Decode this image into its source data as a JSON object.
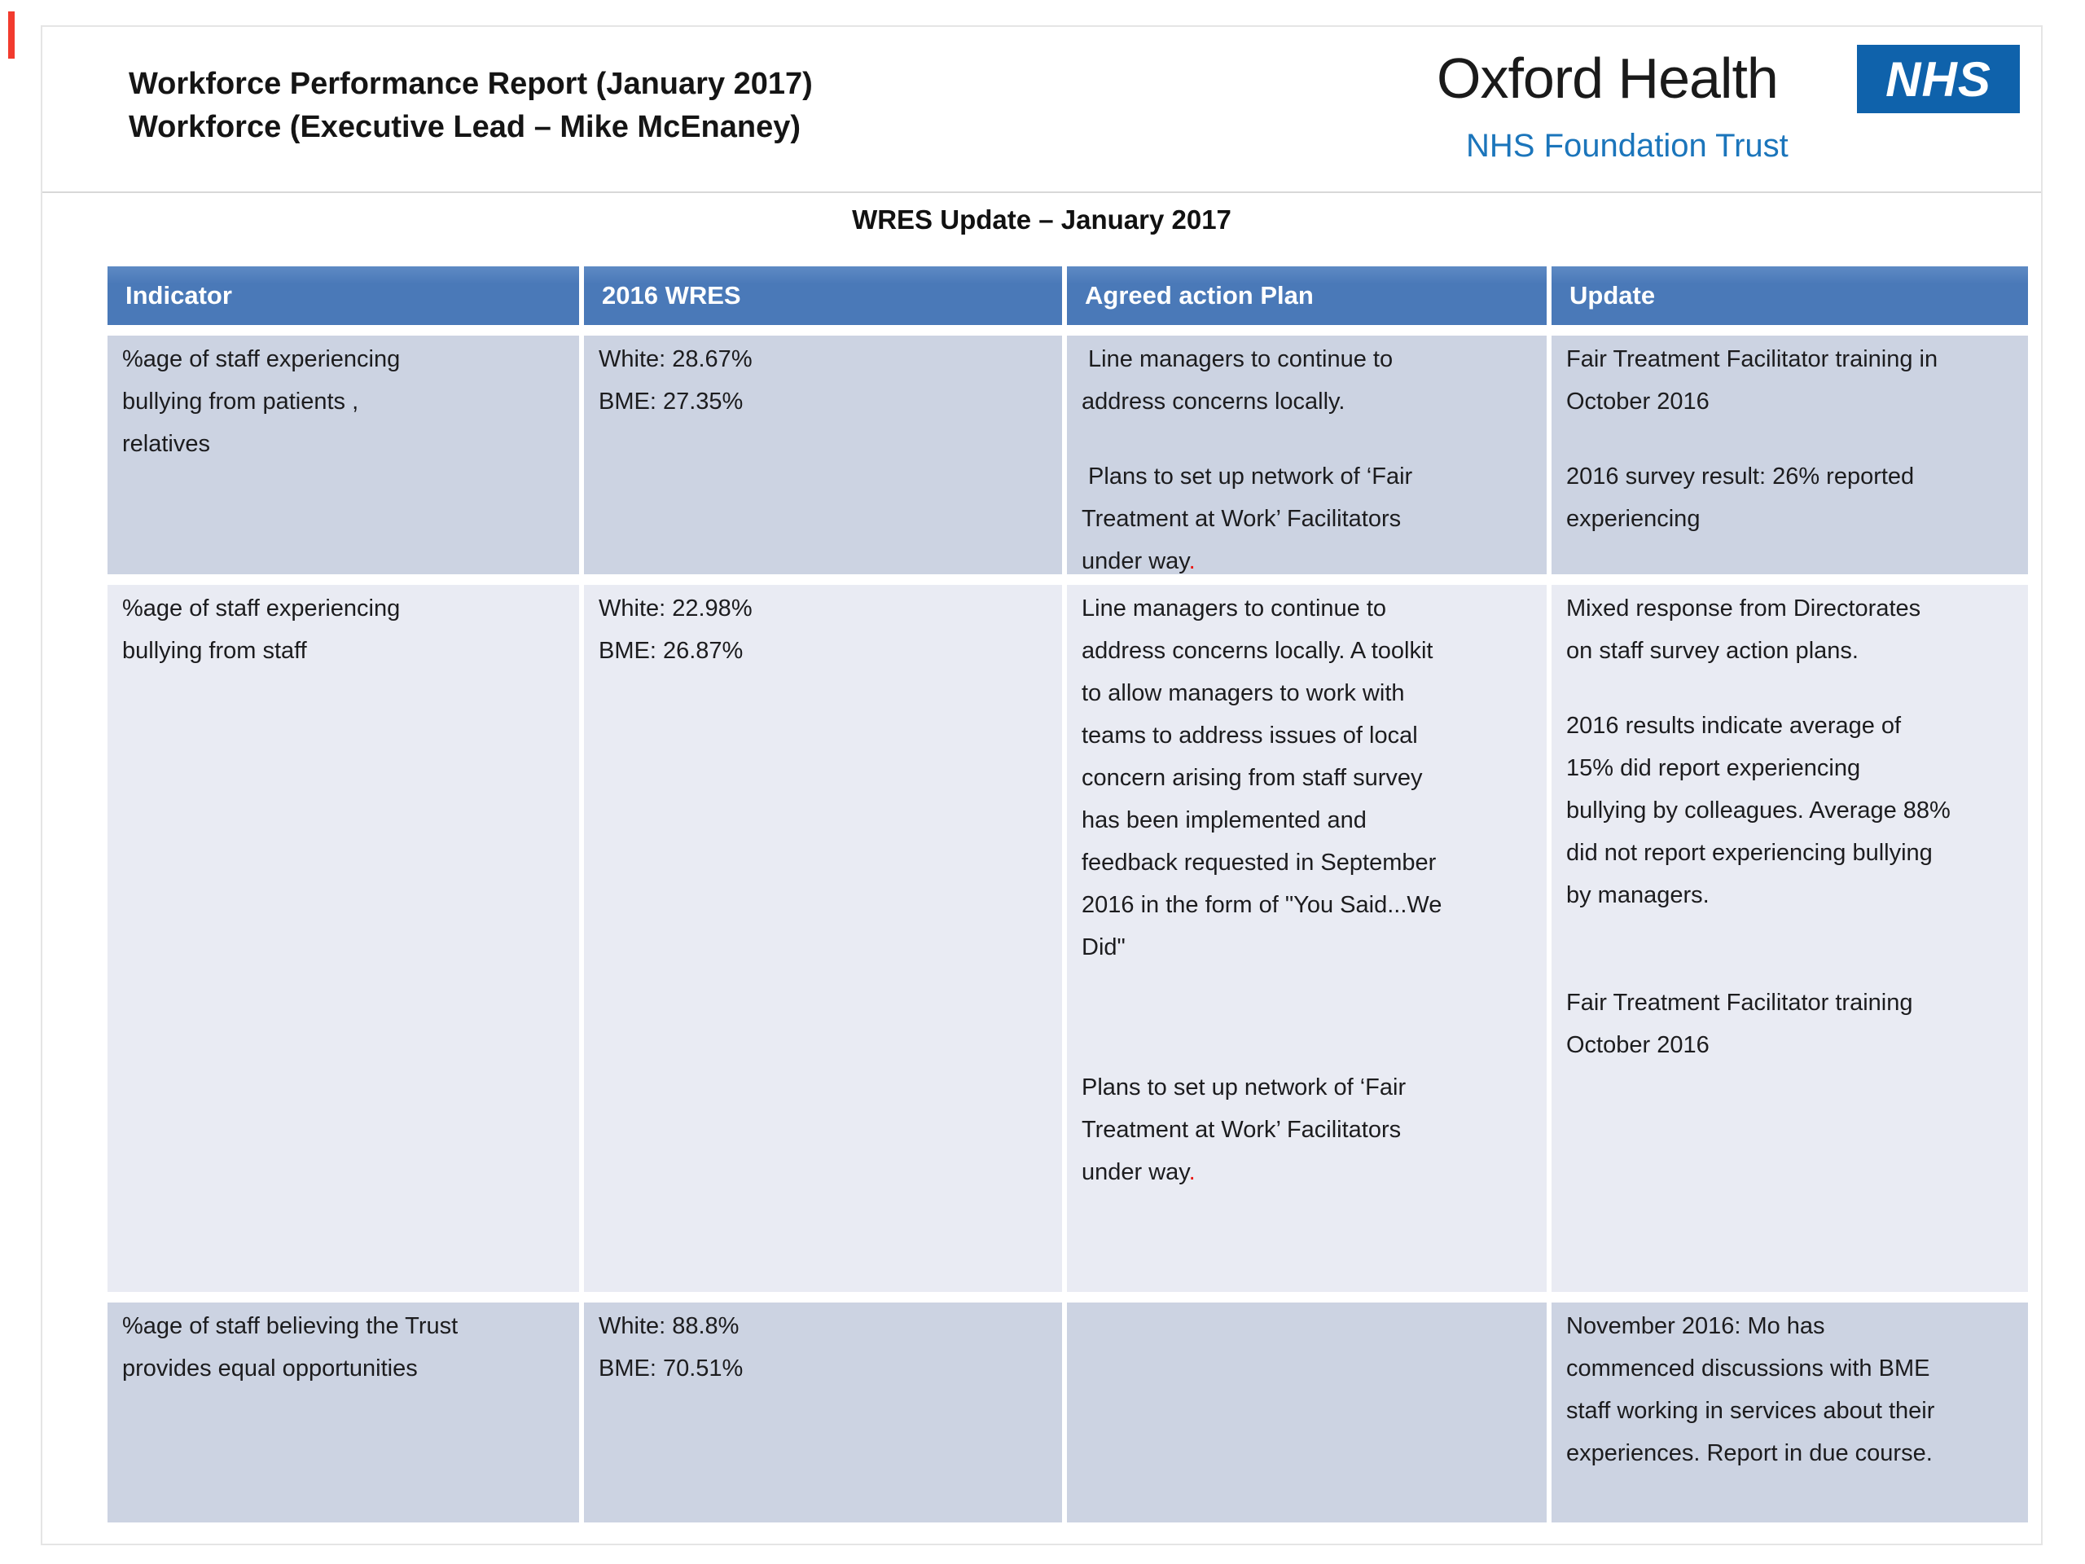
{
  "page": {
    "report_title_line1": "Workforce Performance Report (January 2017)",
    "report_title_line2": "Workforce (Executive Lead – Mike McEnaney)",
    "logo": {
      "org": "Oxford Health",
      "acronym": "NHS",
      "subtitle": "NHS Foundation Trust"
    },
    "table_title": "WRES Update – January 2017"
  },
  "colors": {
    "table_header_blue": "#4a79b8",
    "row_dark": "#ccd3e2",
    "row_light": "#e9ebf3",
    "nhs_logo_blue": "#0f62ab",
    "foundation_trust_blue": "#1b75bb",
    "red_full_stop": "#ea1510",
    "left_edge_marker_red": "#f23b2e"
  },
  "table": {
    "headers": [
      "Indicator",
      "2016 WRES",
      "Agreed action Plan",
      "Update"
    ],
    "rows": [
      {
        "indicator": [
          "%age of staff experiencing",
          "bullying from patients ,",
          "relatives"
        ],
        "wres": [
          "White: 28.67%",
          "BME: 27.35%"
        ],
        "action": [
          " Line managers to continue to",
          "address concerns locally.",
          "",
          " Plans to set up network of ‘Fair",
          "Treatment at Work’ Facilitators",
          {
            "t": "under way",
            "red": "."
          }
        ],
        "update": [
          "Fair Treatment Facilitator training in",
          "October 2016",
          "",
          "2016 survey result: 26% reported",
          "experiencing"
        ]
      },
      {
        "indicator": [
          "%age of staff experiencing",
          "bullying from staff"
        ],
        "wres": [
          "White: 22.98%",
          "BME: 26.87%"
        ],
        "action": [
          "Line managers to continue to",
          "address concerns locally. A toolkit",
          "to allow managers to work with",
          "teams to address issues of local",
          "concern arising from staff survey",
          "has been implemented and",
          "feedback requested in September",
          "2016 in the form of \"You Said...We",
          "Did\"",
          "",
          "",
          "",
          "Plans to set up network of ‘Fair",
          "Treatment at Work’ Facilitators",
          {
            "t": "under way",
            "red": "."
          }
        ],
        "update": [
          "Mixed response from Directorates",
          "on staff survey action plans.",
          "",
          "2016 results indicate average of",
          "15% did report experiencing",
          "bullying by colleagues. Average 88%",
          "did not report experiencing bullying",
          "by managers.",
          "",
          "",
          "Fair Treatment Facilitator training",
          "October 2016"
        ]
      },
      {
        "indicator": [
          "%age of staff believing the Trust",
          "provides equal opportunities"
        ],
        "wres": [
          "White: 88.8%",
          "BME: 70.51%"
        ],
        "action": [],
        "update": [
          "November 2016: Mo has",
          "commenced discussions with BME",
          "staff working in services about their",
          "experiences. Report in due course."
        ]
      }
    ]
  }
}
